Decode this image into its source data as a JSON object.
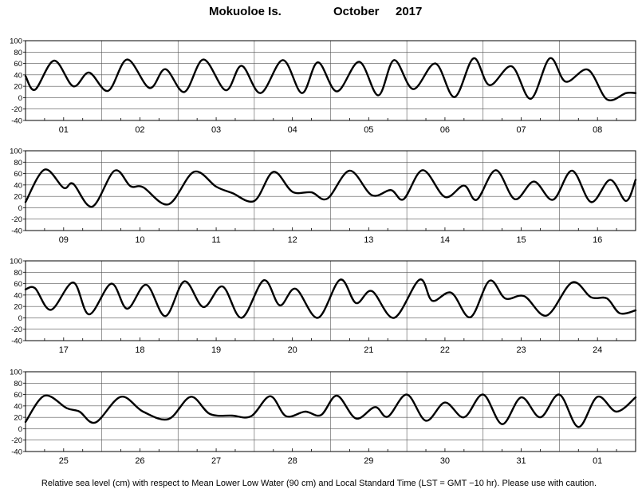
{
  "title": {
    "station": "Mokuoloe Is.",
    "month": "October",
    "year": "2017"
  },
  "footnote": "Relative sea level (cm) with respect to Mean Lower Low Water (90 cm) and Local Standard Time (LST = GMT −10 hr). Please use with caution.",
  "chart_data": [
    {
      "type": "line",
      "ylim": [
        -40,
        100
      ],
      "yticks": [
        100,
        80,
        60,
        40,
        20,
        0,
        -20,
        -40
      ],
      "days": [
        "01",
        "02",
        "03",
        "04",
        "05",
        "06",
        "07",
        "08"
      ],
      "grid": true,
      "series": [
        {
          "x_hours": [
            0,
            3,
            9,
            15,
            20,
            26,
            32,
            39,
            44,
            50,
            56,
            63,
            68,
            74,
            81,
            87,
            92,
            98,
            105,
            111,
            116,
            122,
            129,
            135,
            141,
            146,
            153,
            159,
            165,
            170,
            177,
            183,
            189,
            192
          ],
          "y": [
            38,
            14,
            65,
            20,
            44,
            12,
            67,
            17,
            50,
            10,
            67,
            13,
            56,
            8,
            66,
            8,
            62,
            11,
            63,
            4,
            66,
            15,
            60,
            1,
            69,
            22,
            55,
            -2,
            69,
            28,
            49,
            -3,
            8,
            8
          ]
        }
      ]
    },
    {
      "type": "line",
      "ylim": [
        -40,
        100
      ],
      "yticks": [
        100,
        80,
        60,
        40,
        20,
        0,
        -20,
        -40
      ],
      "days": [
        "09",
        "10",
        "11",
        "12",
        "13",
        "14",
        "15",
        "16"
      ],
      "grid": true,
      "series": [
        {
          "x_hours": [
            0,
            6,
            12,
            15,
            21,
            28,
            33,
            37,
            45,
            53,
            60,
            65,
            72,
            78,
            84,
            90,
            95,
            102,
            109,
            115,
            119,
            125,
            132,
            138,
            142,
            148,
            154,
            160,
            166,
            172,
            178,
            184,
            189,
            192
          ],
          "y": [
            10,
            67,
            35,
            42,
            2,
            65,
            38,
            36,
            6,
            63,
            37,
            26,
            12,
            63,
            28,
            27,
            16,
            65,
            22,
            31,
            15,
            66,
            19,
            39,
            14,
            66,
            15,
            46,
            14,
            65,
            10,
            49,
            12,
            49
          ]
        }
      ]
    },
    {
      "type": "line",
      "ylim": [
        -40,
        100
      ],
      "yticks": [
        100,
        80,
        60,
        40,
        20,
        0,
        -20,
        -40
      ],
      "days": [
        "17",
        "18",
        "19",
        "20",
        "21",
        "22",
        "23",
        "24"
      ],
      "grid": true,
      "series": [
        {
          "x_hours": [
            0,
            3,
            8,
            15,
            20,
            27,
            32,
            38,
            44,
            50,
            56,
            62,
            68,
            75,
            80,
            85,
            92,
            99,
            104,
            109,
            116,
            124,
            128,
            134,
            140,
            146,
            151,
            157,
            164,
            172,
            178,
            183,
            187,
            192
          ],
          "y": [
            50,
            52,
            14,
            62,
            6,
            60,
            16,
            58,
            3,
            64,
            19,
            55,
            0,
            66,
            22,
            51,
            0,
            67,
            26,
            47,
            0,
            67,
            30,
            44,
            1,
            65,
            34,
            38,
            4,
            62,
            36,
            34,
            8,
            13
          ]
        }
      ]
    },
    {
      "type": "line",
      "ylim": [
        -40,
        100
      ],
      "yticks": [
        100,
        80,
        60,
        40,
        20,
        0,
        -20,
        -40
      ],
      "days": [
        "25",
        "26",
        "27",
        "28",
        "29",
        "30",
        "31",
        "01"
      ],
      "grid": true,
      "series": [
        {
          "x_hours": [
            0,
            6,
            13,
            17,
            22,
            30,
            37,
            45,
            52,
            58,
            65,
            71,
            77,
            82,
            88,
            93,
            98,
            104,
            110,
            114,
            120,
            126,
            132,
            138,
            144,
            150,
            156,
            162,
            168,
            174,
            180,
            186,
            192
          ],
          "y": [
            12,
            58,
            36,
            30,
            11,
            56,
            30,
            17,
            56,
            26,
            23,
            22,
            57,
            22,
            30,
            24,
            58,
            18,
            38,
            21,
            60,
            14,
            46,
            20,
            60,
            8,
            55,
            20,
            60,
            3,
            56,
            30,
            55
          ]
        }
      ]
    }
  ]
}
